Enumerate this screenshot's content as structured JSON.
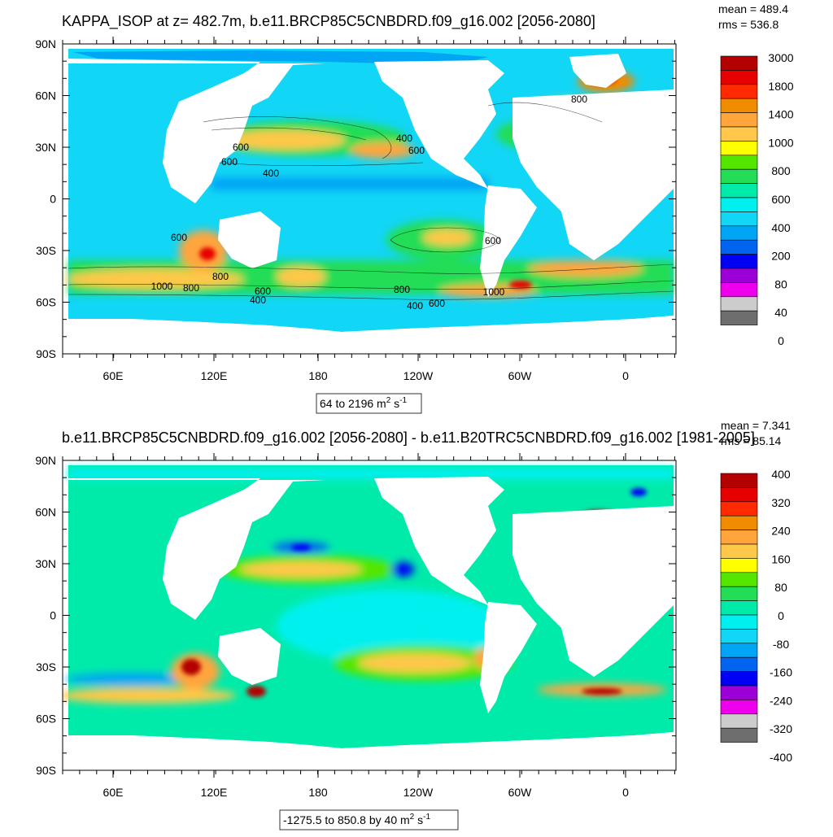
{
  "panels": [
    {
      "title": "KAPPA_ISOP at z= 482.7m, b.e11.BRCP85C5CNBDRD.f09_g16.002 [2056-2080]",
      "stats": [
        "mean = 489.4",
        "rms = 536.8"
      ],
      "lat_ticks": [
        "90N",
        "60N",
        "30N",
        "0",
        "30S",
        "60S",
        "90S"
      ],
      "lon_ticks": [
        "60E",
        "120E",
        "180",
        "120W",
        "60W",
        "0"
      ],
      "range_note": {
        "main": "64 to 2196 m",
        "sup1": "2",
        "mid": " s",
        "sup2": "-1"
      },
      "colorbar": {
        "labels": [
          "3000",
          "1800",
          "1400",
          "1000",
          "800",
          "600",
          "400",
          "200",
          "80",
          "40",
          "0"
        ],
        "colors": [
          "#b30000",
          "#e60000",
          "#ff2a00",
          "#f08c00",
          "#ffa53c",
          "#ffc84a",
          "#ffff00",
          "#55e600",
          "#22dd55",
          "#00ebaa",
          "#00f0f0",
          "#12d6f5",
          "#00a5f5",
          "#0064f0",
          "#0000f5",
          "#9b00d7",
          "#ee00ee",
          "#cccccc",
          "#6e6e6e"
        ]
      },
      "contour_labels": [
        "800",
        "600",
        "600",
        "400",
        "400",
        "600",
        "600",
        "600",
        "800",
        "1000",
        "800",
        "600",
        "400",
        "800",
        "400",
        "600",
        "1000"
      ]
    },
    {
      "title": "b.e11.BRCP85C5CNBDRD.f09_g16.002 [2056-2080] - b.e11.B20TRC5CNBDRD.f09_g16.002 [1981-2005]",
      "stats": [
        "mean = 7.341",
        "rms = 85.14"
      ],
      "lat_ticks": [
        "90N",
        "60N",
        "30N",
        "0",
        "30S",
        "60S",
        "90S"
      ],
      "lon_ticks": [
        "60E",
        "120E",
        "180",
        "120W",
        "60W",
        "0"
      ],
      "range_note": {
        "main": "-1275.5 to 850.8 by 40 m",
        "sup1": "2",
        "mid": " s",
        "sup2": "-1"
      },
      "colorbar": {
        "labels": [
          "400",
          "320",
          "240",
          "160",
          "80",
          "0",
          "-80",
          "-160",
          "-240",
          "-320",
          "-400"
        ],
        "colors": [
          "#b30000",
          "#e60000",
          "#ff2a00",
          "#f08c00",
          "#ffa53c",
          "#ffc84a",
          "#ffff00",
          "#55e600",
          "#22dd55",
          "#00ebaa",
          "#00f0f0",
          "#12d6f5",
          "#00a5f5",
          "#0064f0",
          "#0000f5",
          "#9b00d7",
          "#ee00ee",
          "#cccccc",
          "#6e6e6e"
        ]
      }
    }
  ]
}
